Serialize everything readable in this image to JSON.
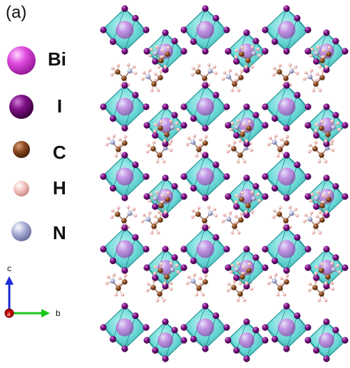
{
  "panel_label": "(a)",
  "legend": [
    {
      "symbol": "Bi",
      "color": "#d13ad1"
    },
    {
      "symbol": "I",
      "color": "#7a0f80"
    },
    {
      "symbol": "C",
      "color": "#8a4a22"
    },
    {
      "symbol": "H",
      "color": "#f2c0bb"
    },
    {
      "symbol": "N",
      "color": "#a9aed6"
    }
  ],
  "axes": {
    "c_label": "c",
    "b_label": "b",
    "a_label": "a",
    "c_color": "#1d2ad8",
    "b_color": "#18c818",
    "a_color": "#c00000"
  },
  "structure": {
    "octahedron_color": "#3fc9c7",
    "octahedron_edge": "#1c8f8e"
  }
}
